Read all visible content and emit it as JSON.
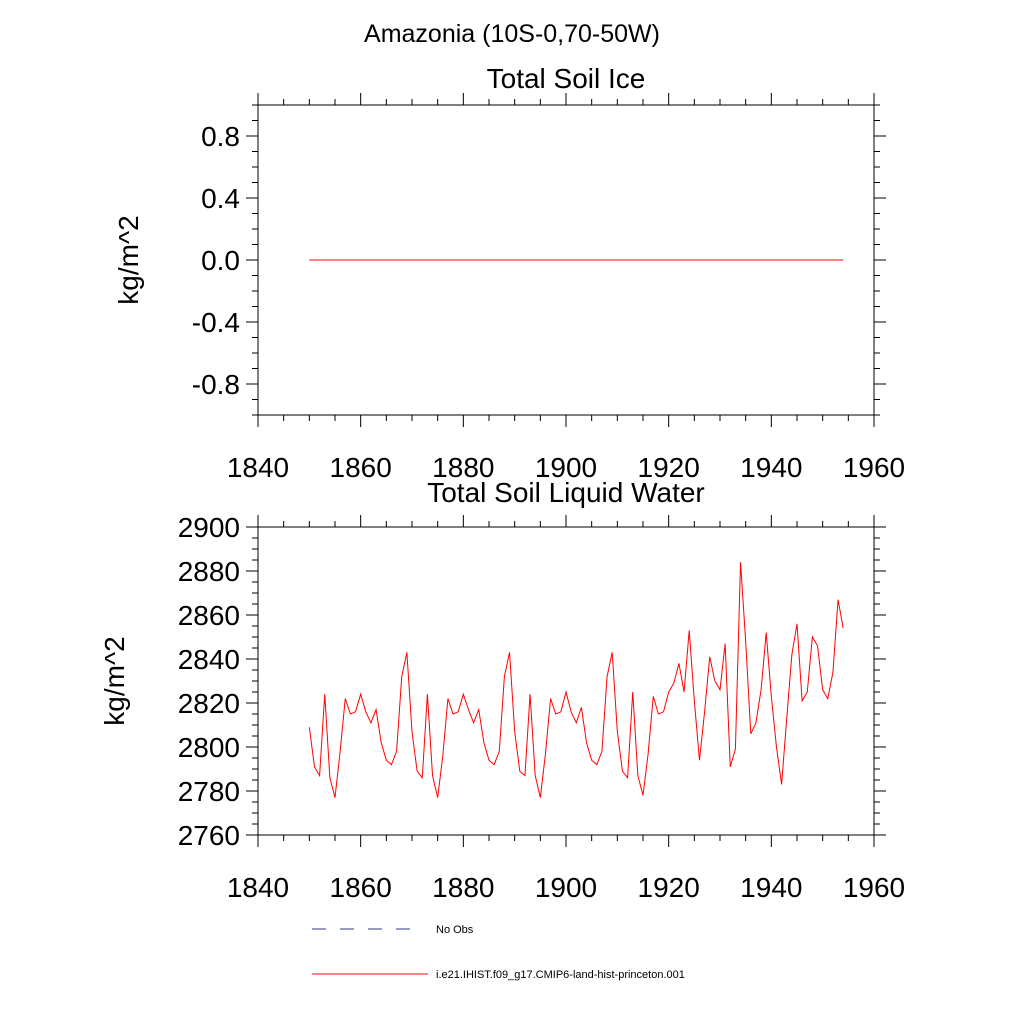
{
  "figure": {
    "title": "Amazonia (10S-0,70-50W)"
  },
  "legend": {
    "entries": [
      {
        "label": "No Obs",
        "color": "#2c3e8c",
        "style": "dashed"
      },
      {
        "label": "i.e21.IHIST.f09_g17.CMIP6-land-hist-princeton.001",
        "color": "#ff0000",
        "style": "solid"
      }
    ]
  },
  "chart_data": [
    {
      "type": "line",
      "title": "Total Soil Ice",
      "xlabel": "",
      "ylabel": "kg/m^2",
      "xlim": [
        1840,
        1960
      ],
      "ylim": [
        -1.0,
        1.0
      ],
      "xticks": [
        1840,
        1860,
        1880,
        1900,
        1920,
        1940,
        1960
      ],
      "yticks": [
        -0.8,
        -0.4,
        0.0,
        0.4,
        0.8
      ],
      "xtick_labels": [
        "1840",
        "1860",
        "1880",
        "1900",
        "1920",
        "1940",
        "1960"
      ],
      "ytick_labels": [
        "-0.8",
        "-0.4",
        "0.0",
        "0.4",
        "0.8"
      ],
      "grid": false,
      "series": [
        {
          "name": "i.e21.IHIST.f09_g17.CMIP6-land-hist-princeton.001",
          "color": "#ff0000",
          "x_start": 1850,
          "x_step": 1,
          "values": [
            0,
            0,
            0,
            0,
            0,
            0,
            0,
            0,
            0,
            0,
            0,
            0,
            0,
            0,
            0,
            0,
            0,
            0,
            0,
            0,
            0,
            0,
            0,
            0,
            0,
            0,
            0,
            0,
            0,
            0,
            0,
            0,
            0,
            0,
            0,
            0,
            0,
            0,
            0,
            0,
            0,
            0,
            0,
            0,
            0,
            0,
            0,
            0,
            0,
            0,
            0,
            0,
            0,
            0,
            0,
            0,
            0,
            0,
            0,
            0,
            0,
            0,
            0,
            0,
            0,
            0,
            0,
            0,
            0,
            0,
            0,
            0,
            0,
            0,
            0,
            0,
            0,
            0,
            0,
            0,
            0,
            0,
            0,
            0,
            0,
            0,
            0,
            0,
            0,
            0,
            0,
            0,
            0,
            0,
            0,
            0,
            0,
            0,
            0,
            0,
            0,
            0,
            0,
            0,
            0
          ]
        }
      ]
    },
    {
      "type": "line",
      "title": "Total Soil Liquid Water",
      "xlabel": "",
      "ylabel": "kg/m^2",
      "xlim": [
        1840,
        1960
      ],
      "ylim": [
        2760,
        2900
      ],
      "xticks": [
        1840,
        1860,
        1880,
        1900,
        1920,
        1940,
        1960
      ],
      "yticks": [
        2760,
        2780,
        2800,
        2820,
        2840,
        2860,
        2880,
        2900
      ],
      "xtick_labels": [
        "1840",
        "1860",
        "1880",
        "1900",
        "1920",
        "1940",
        "1960"
      ],
      "ytick_labels": [
        "2760",
        "2780",
        "2800",
        "2820",
        "2840",
        "2860",
        "2880",
        "2900"
      ],
      "grid": false,
      "series": [
        {
          "name": "i.e21.IHIST.f09_g17.CMIP6-land-hist-princeton.001",
          "color": "#ff0000",
          "x_start": 1850,
          "x_step": 1,
          "values": [
            2809,
            2791,
            2787,
            2824,
            2786,
            2777,
            2798,
            2822,
            2815,
            2816,
            2824,
            2816,
            2811,
            2817,
            2802,
            2794,
            2792,
            2798,
            2832,
            2843,
            2807,
            2789,
            2786,
            2824,
            2787,
            2777,
            2796,
            2822,
            2815,
            2816,
            2824,
            2817,
            2811,
            2817,
            2802,
            2794,
            2792,
            2798,
            2832,
            2843,
            2807,
            2789,
            2787,
            2824,
            2787,
            2777,
            2797,
            2822,
            2815,
            2816,
            2825,
            2816,
            2811,
            2818,
            2802,
            2794,
            2792,
            2798,
            2832,
            2843,
            2807,
            2789,
            2786,
            2825,
            2787,
            2778,
            2797,
            2823,
            2815,
            2816,
            2825,
            2829,
            2838,
            2825,
            2853,
            2821,
            2794,
            2816,
            2841,
            2830,
            2826,
            2847,
            2791,
            2799,
            2884,
            2848,
            2806,
            2811,
            2826,
            2852,
            2823,
            2800,
            2783,
            2813,
            2842,
            2856,
            2821,
            2825,
            2850,
            2846,
            2826,
            2822,
            2834,
            2867,
            2854
          ]
        }
      ]
    }
  ]
}
